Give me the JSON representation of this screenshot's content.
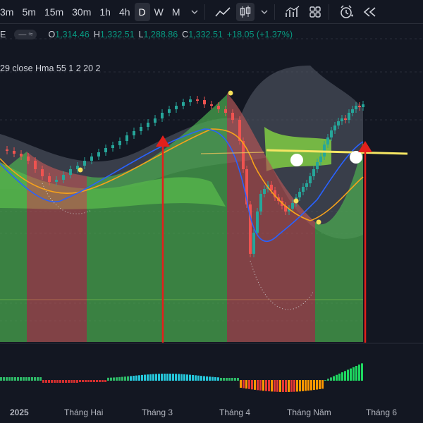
{
  "toolbar": {
    "timeframes": [
      {
        "label": "3m"
      },
      {
        "label": "5m"
      },
      {
        "label": "15m"
      },
      {
        "label": "30m"
      },
      {
        "label": "1h"
      },
      {
        "label": "4h"
      },
      {
        "label": "D",
        "active": true
      },
      {
        "label": "W"
      },
      {
        "label": "M"
      }
    ],
    "icons": [
      "chevron-down-icon",
      "line-chart-icon",
      "candlestick-icon",
      "chevron-down-icon",
      "indicators-icon",
      "layout-grid-icon",
      "alert-clock-icon",
      "replay-icon"
    ]
  },
  "legend": {
    "symbol": "E",
    "open_label": "O",
    "open": "1,314.46",
    "high_label": "H",
    "high": "1,332.51",
    "low_label": "L",
    "low": "1,288.86",
    "close_label": "C",
    "close": "1,332.51",
    "change": "+18.05 (+1.37%)"
  },
  "indicator_legend": "29 close Hma 55 1 2 20 2",
  "x_axis": {
    "labels": [
      "2025",
      "Tháng Hai",
      "Tháng 3",
      "Tháng 4",
      "Tháng Năm",
      "Tháng 6"
    ]
  },
  "colors": {
    "background": "#131722",
    "bull_zone": "#4caf50",
    "bear_zone": "#b05555",
    "cloud": "#7cc444",
    "up_candle": "#26a69a",
    "down_candle": "#ef5350",
    "hma": "#2962ff",
    "ema": "#f7a21b",
    "arrow": "#e3201b",
    "level_line": "#f5e663"
  },
  "chart_data": {
    "type": "candlestick",
    "x_labels": [
      "2025",
      "Tháng Hai",
      "Tháng 3",
      "Tháng 4",
      "Tháng Năm",
      "Tháng 6"
    ],
    "close_last": 1332.51,
    "series": [
      {
        "name": "Hma"
      },
      {
        "name": "EMA"
      }
    ],
    "annotations": [
      "up-arrow-march",
      "up-arrow-june"
    ]
  }
}
